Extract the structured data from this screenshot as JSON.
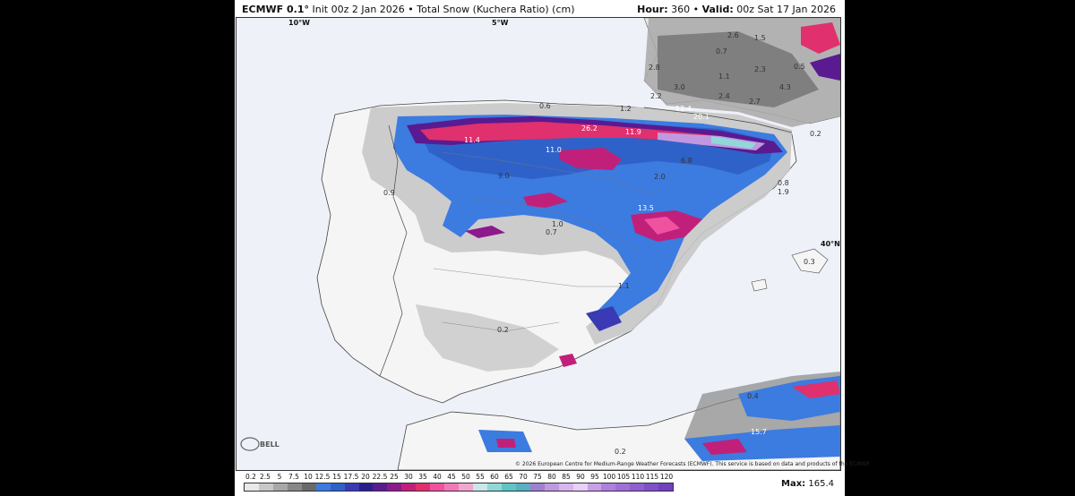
{
  "header": {
    "model": "ECMWF 0.1°",
    "init": "Init 00z 2 Jan 2026",
    "sep": "•",
    "product": "Total Snow (Kuchera Ratio) (cm)",
    "hour_label": "Hour:",
    "hour": "360",
    "valid_label": "Valid:",
    "valid": "00z Sat 17 Jan 2026"
  },
  "gridlines": {
    "lon_10w": "10°W",
    "lon_5w": "5°W",
    "lat_40n": "40°N"
  },
  "map_values": [
    "2.6",
    "1.5",
    "0.7",
    "2.8",
    "1.1",
    "2.3",
    "0.5",
    "3.0",
    "4.3",
    "2.2",
    "2.4",
    "2.7",
    "12.4",
    "20.1",
    "0.6",
    "26.2",
    "1.2",
    "11.9",
    "0.2",
    "11.4",
    "11.0",
    "6.8",
    "9.0",
    "2.0",
    "0.8",
    "0.9",
    "1.9",
    "13.5",
    "1.0",
    "0.7",
    "0.3",
    "1.1",
    "0.2",
    "0.4",
    "15.7",
    "0.2"
  ],
  "logo_text": "BELL",
  "copyright": "© 2026 European Centre for Medium-Range Weather Forecasts (ECMWF). This service is based on data and products of the ECMWF.",
  "legend": {
    "labels": [
      "0.2",
      "2.5",
      "5",
      "7.5",
      "10",
      "12.5",
      "15",
      "17.5",
      "20",
      "22.5",
      "25",
      "30",
      "35",
      "40",
      "45",
      "50",
      "55",
      "60",
      "65",
      "70",
      "75",
      "80",
      "85",
      "90",
      "95",
      "100",
      "105",
      "110",
      "115",
      "120"
    ],
    "colors": [
      "#e8e8e8",
      "#c8c8c8",
      "#a8a8a8",
      "#888888",
      "#6a6a6a",
      "#3c7be0",
      "#2f62c8",
      "#3a3ab4",
      "#2a1e8c",
      "#5a1a90",
      "#8c1a8c",
      "#c0207a",
      "#e0306e",
      "#f052a0",
      "#f07ab8",
      "#f0a8d0",
      "#c8e8ec",
      "#90d8d8",
      "#60c4c4",
      "#58b0c0",
      "#a080d0",
      "#c098e0",
      "#d8b4f0",
      "#e8d0f8",
      "#c8a0e8",
      "#b080e0",
      "#a070d8",
      "#9060d0",
      "#8050c8",
      "#7040c0"
    ]
  },
  "max": {
    "label": "Max:",
    "value": "165.4"
  }
}
